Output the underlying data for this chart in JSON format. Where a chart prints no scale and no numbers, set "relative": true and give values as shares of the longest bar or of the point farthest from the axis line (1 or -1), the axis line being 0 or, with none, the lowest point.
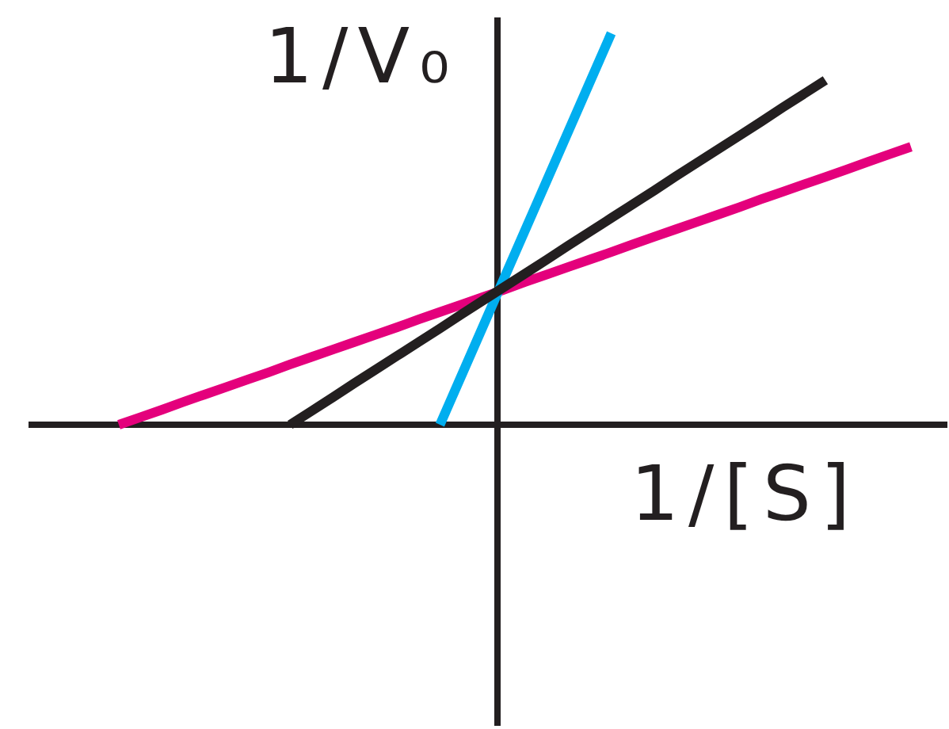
{
  "chart_data": {
    "type": "line",
    "xlabel": "1/[S]",
    "ylabel": "1/V₀",
    "relative": true,
    "categories": [
      null,
      null,
      null,
      null,
      null,
      null,
      null,
      null,
      null,
      null,
      null,
      null,
      null,
      null,
      null,
      null,
      null,
      null,
      null,
      null,
      null,
      null,
      null,
      null,
      null,
      null,
      null,
      null,
      null,
      null,
      null,
      null,
      null,
      null,
      null,
      null,
      null,
      null
    ],
    "series": [
      {
        "color": "#e4007c",
        "values": [
          0,
          0.019,
          0.038,
          0.058,
          0.077,
          0.096,
          0.115,
          0.134,
          0.154,
          0.173,
          0.192,
          0.211,
          0.23,
          0.249,
          0.269,
          0.288,
          0.307,
          0.326,
          0.345,
          0.365,
          0.384,
          0.403,
          0.422,
          0.441,
          0.461,
          0.48,
          0.499,
          0.518,
          0.537,
          0.556,
          0.576,
          0.595,
          0.614,
          0.633,
          0.652,
          0.672,
          0.691,
          0.71
        ]
      },
      {
        "color": "#00aeef",
        "values": [
          null,
          null,
          null,
          null,
          null,
          null,
          null,
          null,
          null,
          null,
          null,
          null,
          null,
          null,
          null,
          0,
          0.125,
          0.25,
          0.375,
          0.5,
          0.625,
          0.75,
          0.875,
          1,
          null,
          null,
          null,
          null,
          null,
          null,
          null,
          null,
          null,
          null,
          null,
          null,
          null,
          null
        ]
      },
      {
        "color": "#231f20",
        "values": [
          null,
          null,
          null,
          null,
          null,
          null,
          null,
          null,
          0,
          0.035,
          0.07,
          0.106,
          0.141,
          0.176,
          0.211,
          0.246,
          0.282,
          0.317,
          0.352,
          0.387,
          0.422,
          0.458,
          0.493,
          0.528,
          0.563,
          0.598,
          0.634,
          0.669,
          0.704,
          0.739,
          0.774,
          0.81,
          0.845,
          0.88,
          null,
          null,
          null,
          null
        ]
      }
    ]
  }
}
